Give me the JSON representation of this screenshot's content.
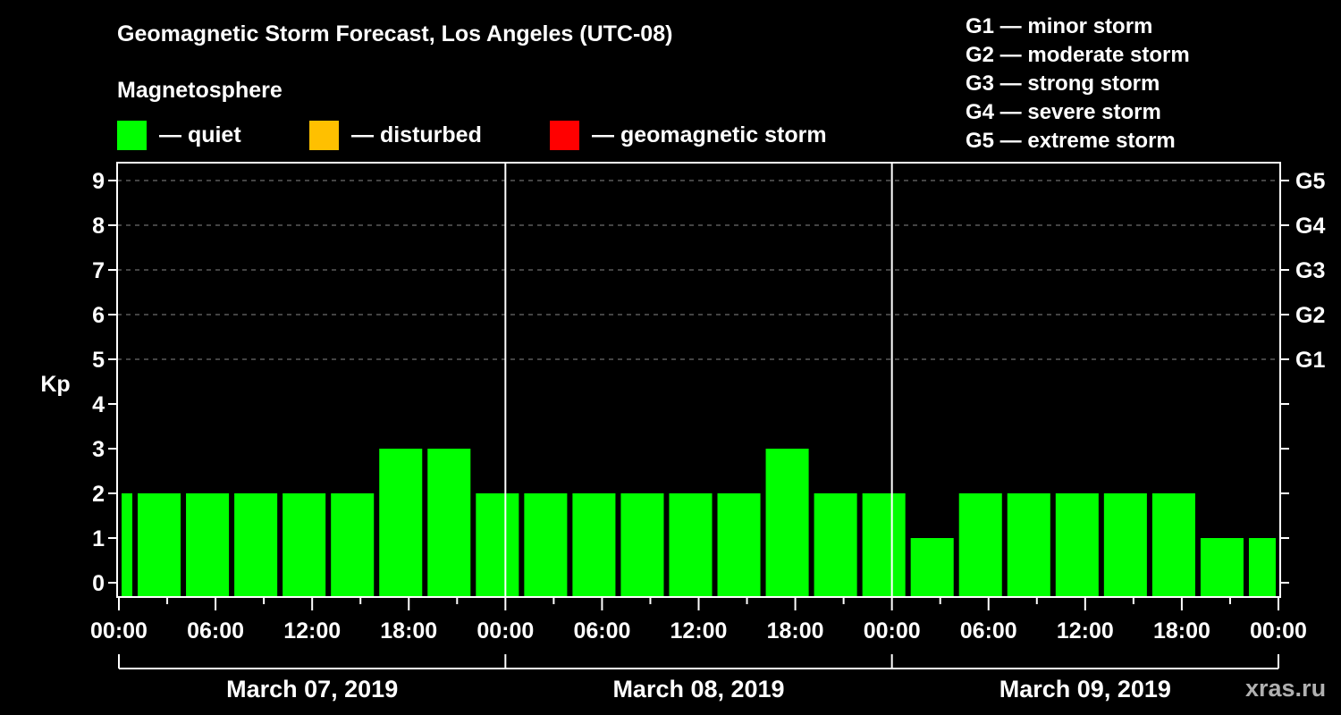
{
  "header": {
    "title": "Geomagnetic Storm Forecast, Los Angeles (UTC-08)",
    "subtitle": "Magnetosphere"
  },
  "legend": {
    "items": [
      {
        "label": "— quiet",
        "color": "#00ff00"
      },
      {
        "label": "— disturbed",
        "color": "#ffc000"
      },
      {
        "label": "— geomagnetic storm",
        "color": "#ff0000"
      }
    ]
  },
  "storm_scale": {
    "items": [
      {
        "label": "G1 — minor storm"
      },
      {
        "label": "G2 — moderate storm"
      },
      {
        "label": "G3 — strong storm"
      },
      {
        "label": "G4 — severe storm"
      },
      {
        "label": "G5 — extreme storm"
      }
    ]
  },
  "axes": {
    "ylabel": "Kp",
    "y_ticks": [
      "0",
      "1",
      "2",
      "3",
      "4",
      "5",
      "6",
      "7",
      "8",
      "9"
    ],
    "g_ticks": [
      {
        "label": "G1",
        "kp": 5
      },
      {
        "label": "G2",
        "kp": 6
      },
      {
        "label": "G3",
        "kp": 7
      },
      {
        "label": "G4",
        "kp": 8
      },
      {
        "label": "G5",
        "kp": 9
      }
    ],
    "x_ticks": [
      "00:00",
      "06:00",
      "12:00",
      "18:00",
      "00:00",
      "06:00",
      "12:00",
      "18:00",
      "00:00",
      "06:00",
      "12:00",
      "18:00",
      "00:00"
    ],
    "days": [
      "March 07, 2019",
      "March 08, 2019",
      "March 09, 2019"
    ]
  },
  "watermark": "xras.ru",
  "chart_data": {
    "type": "bar",
    "title": "Geomagnetic Storm Forecast, Los Angeles (UTC-08)",
    "xlabel": "",
    "ylabel": "Kp",
    "ylim": [
      0,
      9
    ],
    "grid": "dashed horizontal at Kp 5-9",
    "legend_position": "top",
    "bar_interval_hours": 3,
    "bar_offset_hours": 1,
    "categories": [
      "Mar07 00:00-01:00",
      "Mar07 01:00-04:00",
      "Mar07 04:00-07:00",
      "Mar07 07:00-10:00",
      "Mar07 10:00-13:00",
      "Mar07 13:00-16:00",
      "Mar07 16:00-19:00",
      "Mar07 19:00-22:00",
      "Mar07 22:00-Mar08 01:00",
      "Mar08 01:00-04:00",
      "Mar08 04:00-07:00",
      "Mar08 07:00-10:00",
      "Mar08 10:00-13:00",
      "Mar08 13:00-16:00",
      "Mar08 16:00-19:00",
      "Mar08 19:00-22:00",
      "Mar08 22:00-Mar09 01:00",
      "Mar09 01:00-04:00",
      "Mar09 04:00-07:00",
      "Mar09 07:00-10:00",
      "Mar09 10:00-13:00",
      "Mar09 13:00-16:00",
      "Mar09 16:00-19:00",
      "Mar09 19:00-22:00",
      "Mar09 22:00-24:00"
    ],
    "start_hours": [
      0,
      1,
      4,
      7,
      10,
      13,
      16,
      19,
      22,
      25,
      28,
      31,
      34,
      37,
      40,
      43,
      46,
      49,
      52,
      55,
      58,
      61,
      64,
      67,
      70
    ],
    "end_hours": [
      1,
      4,
      7,
      10,
      13,
      16,
      19,
      22,
      25,
      28,
      31,
      34,
      37,
      40,
      43,
      46,
      49,
      52,
      55,
      58,
      61,
      64,
      67,
      70,
      72
    ],
    "values": [
      2,
      2,
      2,
      2,
      2,
      2,
      3,
      3,
      2,
      2,
      2,
      2,
      2,
      2,
      3,
      2,
      2,
      1,
      2,
      2,
      2,
      2,
      2,
      1,
      1
    ],
    "status": [
      "quiet",
      "quiet",
      "quiet",
      "quiet",
      "quiet",
      "quiet",
      "quiet",
      "quiet",
      "quiet",
      "quiet",
      "quiet",
      "quiet",
      "quiet",
      "quiet",
      "quiet",
      "quiet",
      "quiet",
      "quiet",
      "quiet",
      "quiet",
      "quiet",
      "quiet",
      "quiet",
      "quiet",
      "quiet"
    ],
    "colors": {
      "quiet": "#00ff00",
      "disturbed": "#ffc000",
      "storm": "#ff0000"
    }
  }
}
